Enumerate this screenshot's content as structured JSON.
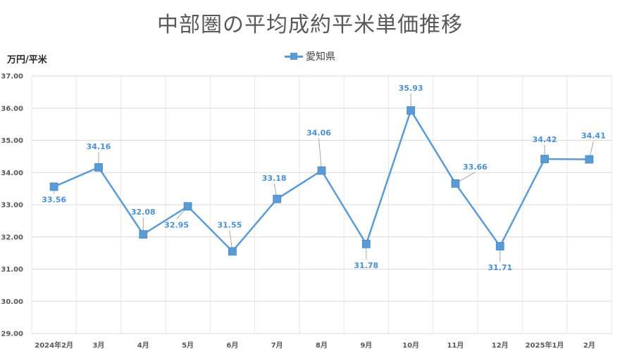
{
  "title": "中部圏の平均成約平米単価推移",
  "unit_label": "万円/平米",
  "colors": {
    "series": "#5B9BD5",
    "grid": "#d9d9d9",
    "leader": "#a6a6a6"
  },
  "chart_data": {
    "type": "line",
    "title": "中部圏の平均成約平米単価推移",
    "ylabel": "万円/平米",
    "xlabel": "",
    "ylim": [
      29.0,
      37.0
    ],
    "y_ticks": [
      "29.00",
      "30.00",
      "31.00",
      "32.00",
      "33.00",
      "34.00",
      "35.00",
      "36.00",
      "37.00"
    ],
    "categories": [
      "2024年2月",
      "3月",
      "4月",
      "5月",
      "6月",
      "7月",
      "8月",
      "9月",
      "10月",
      "11月",
      "12月",
      "2025年1月",
      "2月"
    ],
    "series": [
      {
        "name": "愛知県",
        "values": [
          33.56,
          34.16,
          32.08,
          32.95,
          31.55,
          33.18,
          34.06,
          31.78,
          35.93,
          33.66,
          31.71,
          34.42,
          34.41
        ],
        "labels": [
          "33.56",
          "34.16",
          "32.08",
          "32.95",
          "31.55",
          "33.18",
          "34.06",
          "31.78",
          "35.93",
          "33.66",
          "31.71",
          "34.42",
          "34.41"
        ]
      }
    ],
    "grid": true,
    "legend_position": "top"
  }
}
